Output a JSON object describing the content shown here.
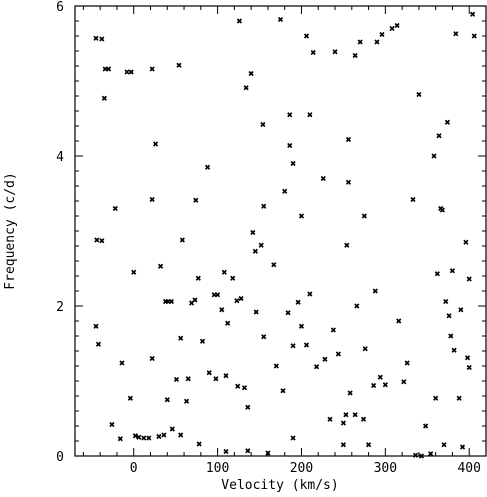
{
  "chart_data": {
    "type": "scatter",
    "title": "",
    "xlabel": "Velocity (km/s)",
    "ylabel": "Frequency (c/d)",
    "xlim": [
      -70,
      420
    ],
    "ylim": [
      0,
      6
    ],
    "x_ticks": [
      0,
      100,
      200,
      300,
      400
    ],
    "x_tick_labels": [
      "0",
      "100",
      "200",
      "300",
      "400"
    ],
    "y_ticks": [
      0,
      2,
      4,
      6
    ],
    "y_tick_labels": [
      "0",
      "2",
      "4",
      "6"
    ],
    "grid": false,
    "legend": "none",
    "marker_color": "#000000",
    "series": [
      {
        "points": [
          [
            -45,
            5.57
          ],
          [
            -38,
            5.56
          ],
          [
            -34,
            5.16
          ],
          [
            -30,
            5.16
          ],
          [
            -8,
            5.12
          ],
          [
            -3,
            5.12
          ],
          [
            22,
            5.16
          ],
          [
            54,
            5.21
          ],
          [
            -35,
            4.77
          ],
          [
            -22,
            3.3
          ],
          [
            26,
            4.16
          ],
          [
            -44,
            2.88
          ],
          [
            -38,
            2.87
          ],
          [
            0,
            2.45
          ],
          [
            22,
            3.42
          ],
          [
            58,
            2.88
          ],
          [
            -45,
            1.73
          ],
          [
            -42,
            1.49
          ],
          [
            -14,
            1.24
          ],
          [
            22,
            1.3
          ],
          [
            32,
            2.53
          ],
          [
            38,
            2.06
          ],
          [
            41,
            2.06
          ],
          [
            45,
            2.06
          ],
          [
            56,
            1.57
          ],
          [
            77,
            2.37
          ],
          [
            -26,
            0.42
          ],
          [
            -16,
            0.23
          ],
          [
            -4,
            0.77
          ],
          [
            2,
            0.27
          ],
          [
            6,
            0.25
          ],
          [
            12,
            0.24
          ],
          [
            18,
            0.24
          ],
          [
            30,
            0.26
          ],
          [
            36,
            0.28
          ],
          [
            46,
            0.36
          ],
          [
            56,
            0.28
          ],
          [
            40,
            0.75
          ],
          [
            51,
            1.02
          ],
          [
            63,
            0.73
          ],
          [
            65,
            1.03
          ],
          [
            69,
            2.04
          ],
          [
            73,
            2.08
          ],
          [
            74,
            3.41
          ],
          [
            78,
            0.16
          ],
          [
            82,
            1.53
          ],
          [
            88,
            3.85
          ],
          [
            90,
            1.11
          ],
          [
            96,
            2.15
          ],
          [
            98,
            1.03
          ],
          [
            100,
            2.15
          ],
          [
            108,
            2.45
          ],
          [
            110,
            1.07
          ],
          [
            112,
            1.77
          ],
          [
            118,
            2.37
          ],
          [
            124,
            0.93
          ],
          [
            126,
            5.8
          ],
          [
            132,
            0.91
          ],
          [
            134,
            4.91
          ],
          [
            136,
            0.65
          ],
          [
            140,
            5.1
          ],
          [
            142,
            2.98
          ],
          [
            145,
            2.73
          ],
          [
            146,
            1.92
          ],
          [
            152,
            2.81
          ],
          [
            154,
            4.42
          ],
          [
            155,
            3.33
          ],
          [
            155,
            1.59
          ],
          [
            160,
            0.04
          ],
          [
            167,
            2.55
          ],
          [
            170,
            1.2
          ],
          [
            175,
            5.82
          ],
          [
            178,
            0.87
          ],
          [
            180,
            3.53
          ],
          [
            184,
            1.91
          ],
          [
            186,
            4.55
          ],
          [
            186,
            4.14
          ],
          [
            190,
            0.24
          ],
          [
            190,
            1.47
          ],
          [
            190,
            3.9
          ],
          [
            196,
            2.05
          ],
          [
            200,
            1.73
          ],
          [
            200,
            3.2
          ],
          [
            206,
            5.6
          ],
          [
            206,
            1.48
          ],
          [
            210,
            2.16
          ],
          [
            210,
            4.55
          ],
          [
            214,
            5.38
          ],
          [
            218,
            1.19
          ],
          [
            226,
            3.7
          ],
          [
            228,
            1.29
          ],
          [
            234,
            0.49
          ],
          [
            238,
            1.68
          ],
          [
            240,
            5.39
          ],
          [
            244,
            1.36
          ],
          [
            250,
            0.15
          ],
          [
            253,
            0.55
          ],
          [
            254,
            2.81
          ],
          [
            256,
            3.65
          ],
          [
            256,
            4.22
          ],
          [
            258,
            0.84
          ],
          [
            264,
            5.34
          ],
          [
            266,
            2
          ],
          [
            270,
            5.52
          ],
          [
            274,
            0.49
          ],
          [
            275,
            3.2
          ],
          [
            276,
            1.43
          ],
          [
            280,
            0.15
          ],
          [
            286,
            0.94
          ],
          [
            288,
            2.2
          ],
          [
            290,
            5.52
          ],
          [
            294,
            1.05
          ],
          [
            296,
            5.62
          ],
          [
            300,
            0.95
          ],
          [
            308,
            5.7
          ],
          [
            314,
            5.74
          ],
          [
            316,
            1.8
          ],
          [
            322,
            0.99
          ],
          [
            326,
            1.24
          ],
          [
            333,
            3.42
          ],
          [
            336,
            0.01
          ],
          [
            340,
            4.82
          ],
          [
            348,
            0.4
          ],
          [
            360,
            0.77
          ],
          [
            362,
            2.43
          ],
          [
            364,
            4.27
          ],
          [
            366,
            3.3
          ],
          [
            368,
            3.28
          ],
          [
            370,
            0.15
          ],
          [
            372,
            2.06
          ],
          [
            374,
            4.45
          ],
          [
            376,
            1.87
          ],
          [
            378,
            1.6
          ],
          [
            380,
            2.47
          ],
          [
            382,
            1.41
          ],
          [
            384,
            5.63
          ],
          [
            388,
            0.77
          ],
          [
            390,
            1.95
          ],
          [
            392,
            0.12
          ],
          [
            396,
            2.85
          ],
          [
            398,
            1.31
          ],
          [
            400,
            2.36
          ],
          [
            400,
            1.18
          ],
          [
            404,
            5.89
          ],
          [
            406,
            5.6
          ],
          [
            136,
            0.07
          ],
          [
            110,
            0.06
          ],
          [
            354,
            0.03
          ],
          [
            343,
            0.0
          ],
          [
            264,
            0.55
          ],
          [
            358,
            4.0
          ],
          [
            250,
            0.44
          ],
          [
            123,
            2.07
          ],
          [
            105,
            1.95
          ],
          [
            128,
            2.1
          ]
        ]
      }
    ]
  }
}
